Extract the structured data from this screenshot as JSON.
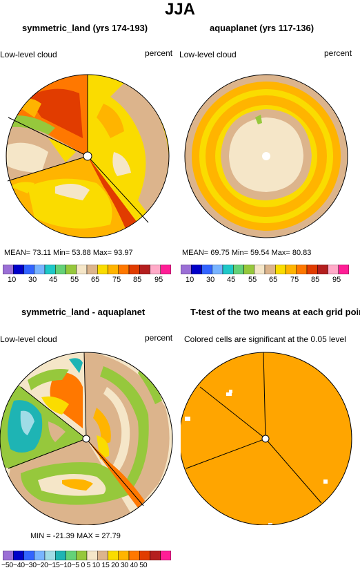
{
  "title": "JJA",
  "palette_abs": [
    "#9b6fd6",
    "#0000c8",
    "#3264ff",
    "#78b4ff",
    "#1ec8c8",
    "#64d278",
    "#96c83c",
    "#f5e6c8",
    "#dcb48c",
    "#fadc00",
    "#ffb400",
    "#ff7800",
    "#e13c00",
    "#b41e1e",
    "#ffaac8",
    "#ff1e96"
  ],
  "palette_diff": [
    "#9b6fd6",
    "#0000c8",
    "#3264ff",
    "#78b4ff",
    "#a0dce6",
    "#1eb4b4",
    "#64d278",
    "#96c83c",
    "#f5e6c8",
    "#dcb48c",
    "#fadc00",
    "#ffb400",
    "#ff7800",
    "#e13c00",
    "#b41e1e",
    "#ff1e96"
  ],
  "chart_data": [
    {
      "type": "heatmap",
      "title": "symmetric_land (yrs 174-193)",
      "variable": "Low-level cloud",
      "units": "percent",
      "stats": {
        "mean": "73.11",
        "min": "53.88",
        "max": "93.97"
      },
      "stats_text": "MEAN=   73.11   Min=   53.88   Max=   93.97",
      "colorbar_ticks": [
        "10",
        "30",
        "45",
        "55",
        "65",
        "75",
        "85",
        "95"
      ]
    },
    {
      "type": "heatmap",
      "title": "aquaplanet (yrs 117-136)",
      "variable": "Low-level cloud",
      "units": "percent",
      "stats": {
        "mean": "69.75",
        "min": "59.54",
        "max": "80.83"
      },
      "stats_text": "MEAN=   69.75   Min=   59.54   Max=   80.83",
      "colorbar_ticks": [
        "10",
        "30",
        "45",
        "55",
        "65",
        "75",
        "85",
        "95"
      ]
    },
    {
      "type": "heatmap",
      "title": "symmetric_land - aquaplanet",
      "variable": "Low-level cloud",
      "units": "percent",
      "stats": {
        "min": "-21.39",
        "max": "27.79"
      },
      "stats_text": "MIN = -21.39  MAX =   27.79",
      "colorbar_ticks_text": "−50−40−30−20−15−10−5  0   5  10 15 20 30 40 50"
    },
    {
      "type": "heatmap",
      "title": "T-test of the two means at each grid point",
      "subtitle": "Colored cells are significant at the 0.05 level"
    }
  ]
}
